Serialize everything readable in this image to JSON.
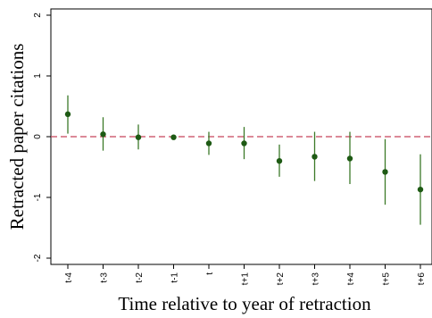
{
  "chart_data": {
    "type": "scatter",
    "subtype": "coefficient-plot-with-error-bars",
    "xlabel": "Time relative to year of retraction",
    "ylabel": "Retracted paper citations",
    "categories": [
      "t-4",
      "t-3",
      "t-2",
      "t-1",
      "t",
      "t+1",
      "t+2",
      "t+3",
      "t+4",
      "t+5",
      "t+6"
    ],
    "estimates": [
      0.37,
      0.04,
      -0.01,
      -0.01,
      -0.11,
      -0.11,
      -0.4,
      -0.33,
      -0.36,
      -0.58,
      -0.87
    ],
    "ci_lower": [
      0.05,
      -0.23,
      -0.21,
      -0.01,
      -0.3,
      -0.37,
      -0.66,
      -0.73,
      -0.78,
      -1.12,
      -1.45
    ],
    "ci_upper": [
      0.68,
      0.32,
      0.2,
      -0.01,
      0.08,
      0.16,
      -0.13,
      0.08,
      0.08,
      -0.04,
      -0.29
    ],
    "yticks": [
      -2,
      -1,
      0,
      1,
      2
    ],
    "ylim": [
      -2.1,
      2.1
    ],
    "reference_line": 0,
    "grid": false,
    "colors": {
      "point": "#1e5a14",
      "error_bar": "#3c7a28",
      "reference_line": "#c8445a",
      "axis": "#000000"
    }
  }
}
